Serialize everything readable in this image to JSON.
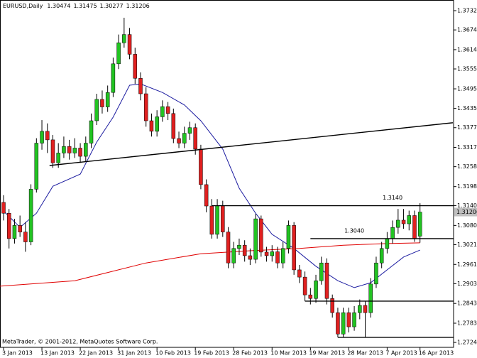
{
  "chart_data": {
    "type": "candlestick",
    "title": "EURUSD,Daily",
    "footer": "MetaTrader, © 2001-2012, MetaQuotes Software Corp.",
    "up_color": "#22c322",
    "down_color": "#e02020",
    "wick_color": "#000000",
    "categories": [
      "3 Jan 2013",
      null,
      null,
      null,
      null,
      null,
      null,
      "13 Jan 2013",
      null,
      null,
      null,
      null,
      null,
      null,
      "22 Jan 2013",
      null,
      null,
      null,
      null,
      null,
      null,
      "31 Jan 2013",
      null,
      null,
      null,
      null,
      null,
      null,
      "10 Feb 2013",
      null,
      null,
      null,
      null,
      null,
      null,
      "19 Feb 2013",
      null,
      null,
      null,
      null,
      null,
      null,
      "28 Feb 2013",
      null,
      null,
      null,
      null,
      null,
      null,
      "10 Mar 2013",
      null,
      null,
      null,
      null,
      null,
      null,
      "19 Mar 2013",
      null,
      null,
      null,
      null,
      null,
      null,
      "28 Mar 2013",
      null,
      null,
      null,
      null,
      null,
      null,
      "7 Apr 2013",
      null,
      null,
      null,
      null,
      null,
      "16 Apr 2013"
    ],
    "open": [
      1.315,
      1.3117,
      1.304,
      1.308,
      1.306,
      1.303,
      1.319,
      1.333,
      1.3366,
      1.334,
      1.327,
      1.33,
      1.332,
      1.33,
      1.3315,
      1.329,
      1.333,
      1.3398,
      1.3463,
      1.344,
      1.3484,
      1.3571,
      1.3635,
      1.366,
      1.36,
      1.3527,
      1.348,
      1.3398,
      1.3366,
      1.341,
      1.3441,
      1.342,
      1.3344,
      1.333,
      1.336,
      1.3377,
      1.3312,
      1.3204,
      1.3139,
      1.3053,
      1.314,
      1.306,
      1.2966,
      1.301,
      1.302,
      1.2988,
      1.2977,
      1.31,
      1.2999,
      1.2988,
      1.3,
      1.2966,
      1.301,
      1.308,
      1.2945,
      1.2923,
      1.2869,
      1.2858,
      1.2912,
      1.2966,
      1.2858,
      1.2815,
      1.275,
      1.2815,
      1.2772,
      1.2815,
      1.2837,
      1.2815,
      1.2902,
      1.2966,
      1.301,
      1.304,
      1.3074,
      1.3096,
      1.3085,
      1.311,
      1.30474
    ],
    "high": [
      1.3172,
      1.313,
      1.31,
      1.311,
      1.309,
      1.3205,
      1.3345,
      1.34,
      1.339,
      1.3355,
      1.333,
      1.335,
      1.334,
      1.3345,
      1.333,
      1.335,
      1.342,
      1.348,
      1.349,
      1.3505,
      1.359,
      1.366,
      1.3711,
      1.368,
      1.362,
      1.3545,
      1.35,
      1.342,
      1.343,
      1.346,
      1.3455,
      1.3435,
      1.3365,
      1.338,
      1.3395,
      1.339,
      1.3325,
      1.322,
      1.316,
      1.316,
      1.3155,
      1.3075,
      1.303,
      1.304,
      1.3035,
      1.301,
      1.3115,
      1.311,
      1.3015,
      1.302,
      1.3015,
      1.303,
      1.3095,
      1.309,
      1.296,
      1.294,
      1.289,
      1.293,
      1.2985,
      1.298,
      1.287,
      1.283,
      1.283,
      1.283,
      1.2835,
      1.2855,
      1.285,
      1.292,
      1.2985,
      1.303,
      1.306,
      1.3095,
      1.313,
      1.313,
      1.3125,
      1.3125,
      1.31475
    ],
    "low": [
      1.3095,
      1.301,
      1.3025,
      1.3045,
      1.3,
      1.302,
      1.318,
      1.331,
      1.33,
      1.3255,
      1.3255,
      1.3285,
      1.328,
      1.3285,
      1.327,
      1.3275,
      1.3315,
      1.3385,
      1.342,
      1.3425,
      1.347,
      1.3555,
      1.362,
      1.3585,
      1.351,
      1.346,
      1.338,
      1.335,
      1.335,
      1.3395,
      1.34,
      1.333,
      1.3315,
      1.3315,
      1.334,
      1.3295,
      1.319,
      1.312,
      1.304,
      1.304,
      1.3045,
      1.295,
      1.295,
      1.299,
      1.297,
      1.296,
      1.2965,
      1.2985,
      1.297,
      1.297,
      1.295,
      1.295,
      1.2995,
      1.293,
      1.2905,
      1.285,
      1.284,
      1.2845,
      1.29,
      1.284,
      1.28,
      1.274,
      1.274,
      1.2755,
      1.276,
      1.2795,
      1.274,
      1.28,
      1.289,
      1.295,
      1.2995,
      1.3025,
      1.3055,
      1.307,
      1.3065,
      1.303,
      1.30277
    ],
    "close": [
      1.3117,
      1.304,
      1.308,
      1.306,
      1.303,
      1.319,
      1.333,
      1.3366,
      1.334,
      1.327,
      1.33,
      1.332,
      1.33,
      1.3315,
      1.329,
      1.333,
      1.3398,
      1.3463,
      1.344,
      1.3484,
      1.3571,
      1.3635,
      1.366,
      1.36,
      1.3527,
      1.348,
      1.3398,
      1.3366,
      1.341,
      1.3441,
      1.342,
      1.3344,
      1.333,
      1.336,
      1.3377,
      1.3312,
      1.3204,
      1.3139,
      1.3053,
      1.314,
      1.306,
      1.2966,
      1.301,
      1.302,
      1.2988,
      1.2977,
      1.31,
      1.2999,
      1.2988,
      1.3,
      1.2966,
      1.301,
      1.308,
      1.2945,
      1.2923,
      1.2869,
      1.2858,
      1.2912,
      1.2966,
      1.2858,
      1.2815,
      1.275,
      1.2815,
      1.2772,
      1.2815,
      1.2837,
      1.2815,
      1.2902,
      1.2966,
      1.301,
      1.304,
      1.3074,
      1.3096,
      1.3085,
      1.311,
      1.304,
      1.31206
    ],
    "indicators": [
      {
        "color": "#1c1ca0",
        "x": [
          0,
          3,
          6,
          9,
          14,
          17,
          20,
          23,
          25,
          29,
          33,
          36,
          40,
          43,
          46,
          49,
          53,
          57,
          61,
          64,
          67,
          70,
          73,
          76
        ],
        "values": [
          1.3124,
          1.3074,
          1.3117,
          1.3199,
          1.3236,
          1.3333,
          1.3409,
          1.3506,
          1.351,
          1.3484,
          1.3446,
          1.3398,
          1.3312,
          1.3193,
          1.3117,
          1.3053,
          1.301,
          1.2956,
          1.2912,
          1.2891,
          1.2906,
          1.2945,
          1.2984,
          1.3005
        ]
      },
      {
        "color": "#e00000",
        "x": [
          -1,
          13,
          26,
          36,
          45,
          54,
          62,
          70,
          76
        ],
        "values": [
          1.2895,
          1.2912,
          1.2966,
          1.2994,
          1.3003,
          1.301,
          1.302,
          1.3025,
          1.3027
        ]
      }
    ],
    "trendline": {
      "color": "#000000",
      "x": [
        8.4,
        82
      ],
      "values": [
        1.3262,
        1.3392
      ]
    },
    "levels": [
      {
        "value": 1.314,
        "label": "1.3140",
        "start": 38,
        "label_at": 71
      },
      {
        "value": 1.304,
        "label": "1.3040",
        "start": 56,
        "label_at": 64
      },
      {
        "value": 1.285,
        "start": 55
      },
      {
        "value": 1.274,
        "start": 61
      }
    ],
    "ylim": [
      1.27096,
      1.37649
    ],
    "yticks": [
      {
        "value": 1.37325,
        "label": "1.37325"
      },
      {
        "value": 1.3674,
        "label": "1.36740"
      },
      {
        "value": 1.3614,
        "label": "1.36140"
      },
      {
        "value": 1.35555,
        "label": "1.35555"
      },
      {
        "value": 1.3495,
        "label": "1.34950"
      },
      {
        "value": 1.34355,
        "label": "1.34355"
      },
      {
        "value": 1.3377,
        "label": "1.33770"
      },
      {
        "value": 1.3317,
        "label": "1.33170"
      },
      {
        "value": 1.32585,
        "label": "1.32585"
      },
      {
        "value": 1.3198,
        "label": "1.31980"
      },
      {
        "value": 1.314,
        "label": "1.31400"
      },
      {
        "value": 1.308,
        "label": "1.30800"
      },
      {
        "value": 1.30215,
        "label": "1.30215"
      },
      {
        "value": 1.29615,
        "label": "1.29615"
      },
      {
        "value": 1.2903,
        "label": "1.29030"
      },
      {
        "value": 1.2843,
        "label": "1.28430"
      },
      {
        "value": 1.2783,
        "label": "1.27830"
      },
      {
        "value": 1.27245,
        "label": "1.27245"
      }
    ],
    "price_label_color": "#c0c0c0"
  }
}
